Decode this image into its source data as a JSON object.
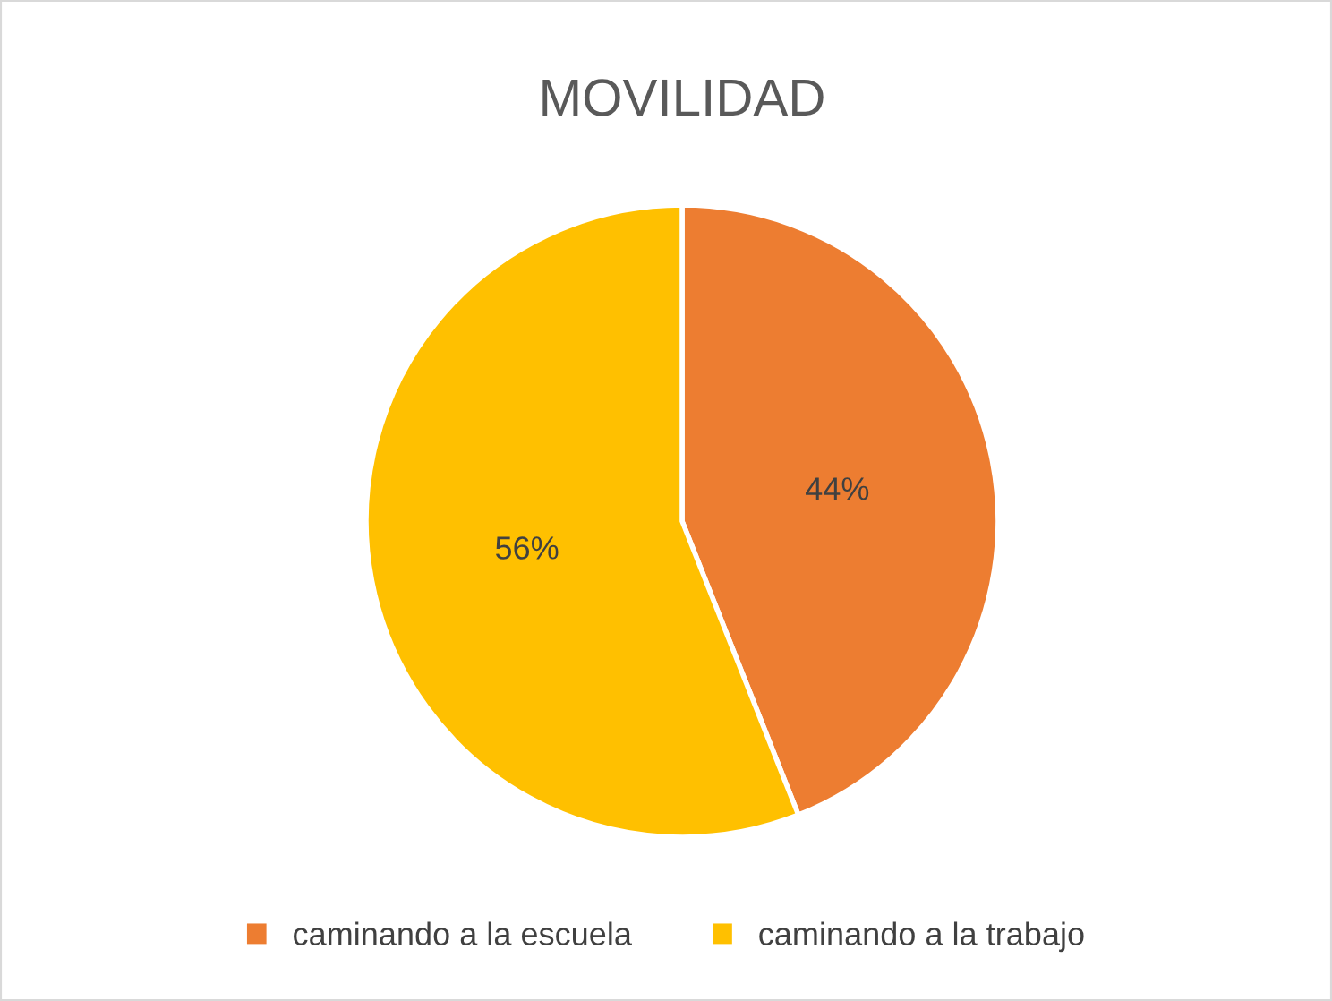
{
  "chart_data": {
    "type": "pie",
    "title": "MOVILIDAD",
    "categories": [
      "caminando a la escuela",
      "caminando a la trabajo"
    ],
    "values": [
      44,
      56
    ],
    "colors": [
      "#ed7d31",
      "#ffc000"
    ],
    "value_labels": [
      "44%",
      "56%"
    ],
    "legend": "bottom"
  }
}
